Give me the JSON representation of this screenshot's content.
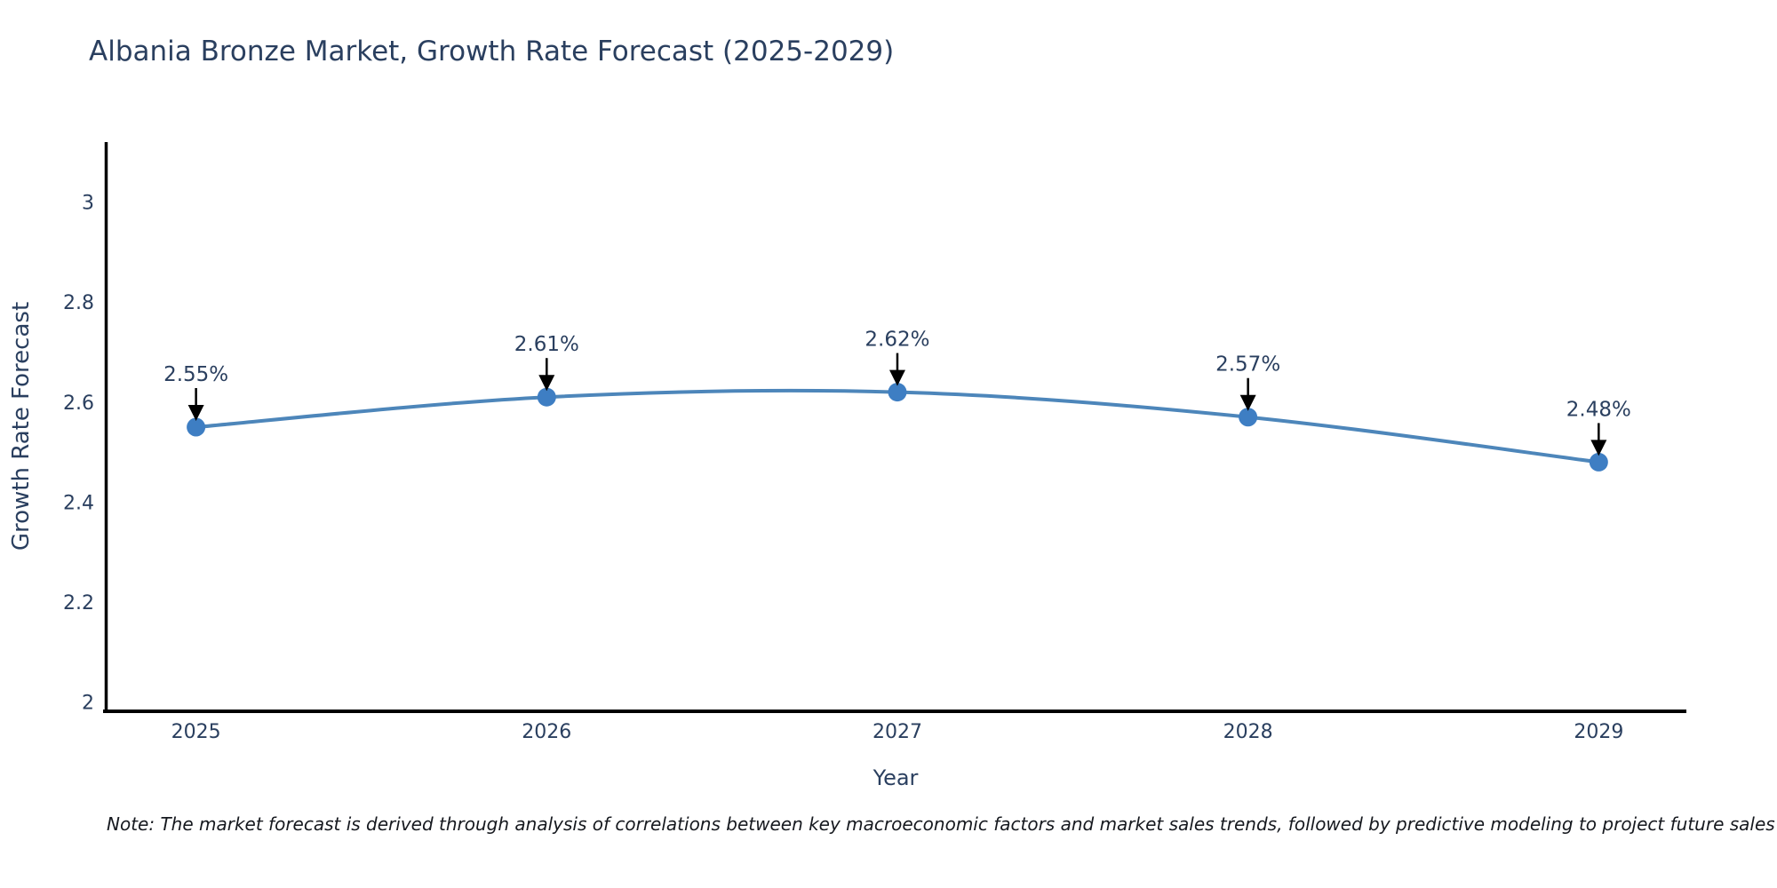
{
  "header": {
    "title": "Albania Bronze Market, Growth Rate Forecast (2025-2029)"
  },
  "chart_data": {
    "type": "line",
    "title": "Albania Bronze Market, Growth Rate Forecast (2025-2029)",
    "xlabel": "Year",
    "ylabel": "Growth Rate Forecast",
    "x": [
      2025,
      2026,
      2027,
      2028,
      2029
    ],
    "values": [
      2.55,
      2.61,
      2.62,
      2.57,
      2.48
    ],
    "point_labels": [
      "2.55%",
      "2.61%",
      "2.62%",
      "2.57%",
      "2.48%"
    ],
    "xtick_labels": [
      "2025",
      "2026",
      "2027",
      "2028",
      "2029"
    ],
    "yticks": [
      2,
      2.2,
      2.4,
      2.6,
      2.8,
      3
    ],
    "ytick_labels": [
      "2",
      "2.2",
      "2.4",
      "2.6",
      "2.8",
      "3"
    ],
    "xlim": [
      2024.74,
      2029.25
    ],
    "ylim": [
      1.98,
      3.12
    ],
    "grid": false,
    "legend": null,
    "line_color": "#4d86ba",
    "marker_color": "#3e7ec3",
    "axis_color": "#000000",
    "text_color": "#2a3f5f",
    "annotation_arrow_color": "#000000"
  },
  "note": {
    "text": "Note: The market forecast is derived through analysis of correlations between key macroeconomic factors and market sales trends, followed by predictive modeling to project future sales"
  }
}
